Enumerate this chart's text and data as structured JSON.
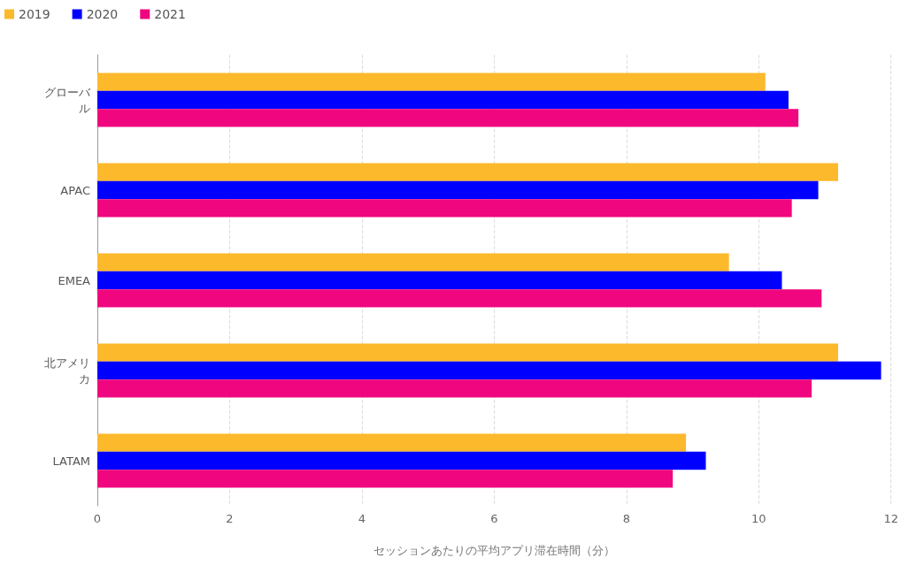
{
  "chart_data": {
    "type": "bar",
    "orientation": "horizontal",
    "xlabel": "セッションあたりの平均アプリ滞在時間（分）",
    "categories": [
      "グローバル",
      "APAC",
      "EMEA",
      "北アメリカ",
      "LATAM"
    ],
    "series": [
      {
        "name": "2019",
        "color": "#fdb92c",
        "values": [
          10.1,
          11.2,
          9.55,
          11.2,
          8.9
        ]
      },
      {
        "name": "2020",
        "color": "#0000ff",
        "values": [
          10.45,
          10.9,
          10.35,
          11.85,
          9.2
        ]
      },
      {
        "name": "2021",
        "color": "#f0067e",
        "values": [
          10.6,
          10.5,
          10.95,
          10.8,
          8.7
        ]
      }
    ],
    "xlim": [
      0,
      12
    ],
    "xticks": [
      0,
      2,
      4,
      6,
      8,
      10,
      12
    ],
    "grid": "x",
    "legend": "top left"
  }
}
